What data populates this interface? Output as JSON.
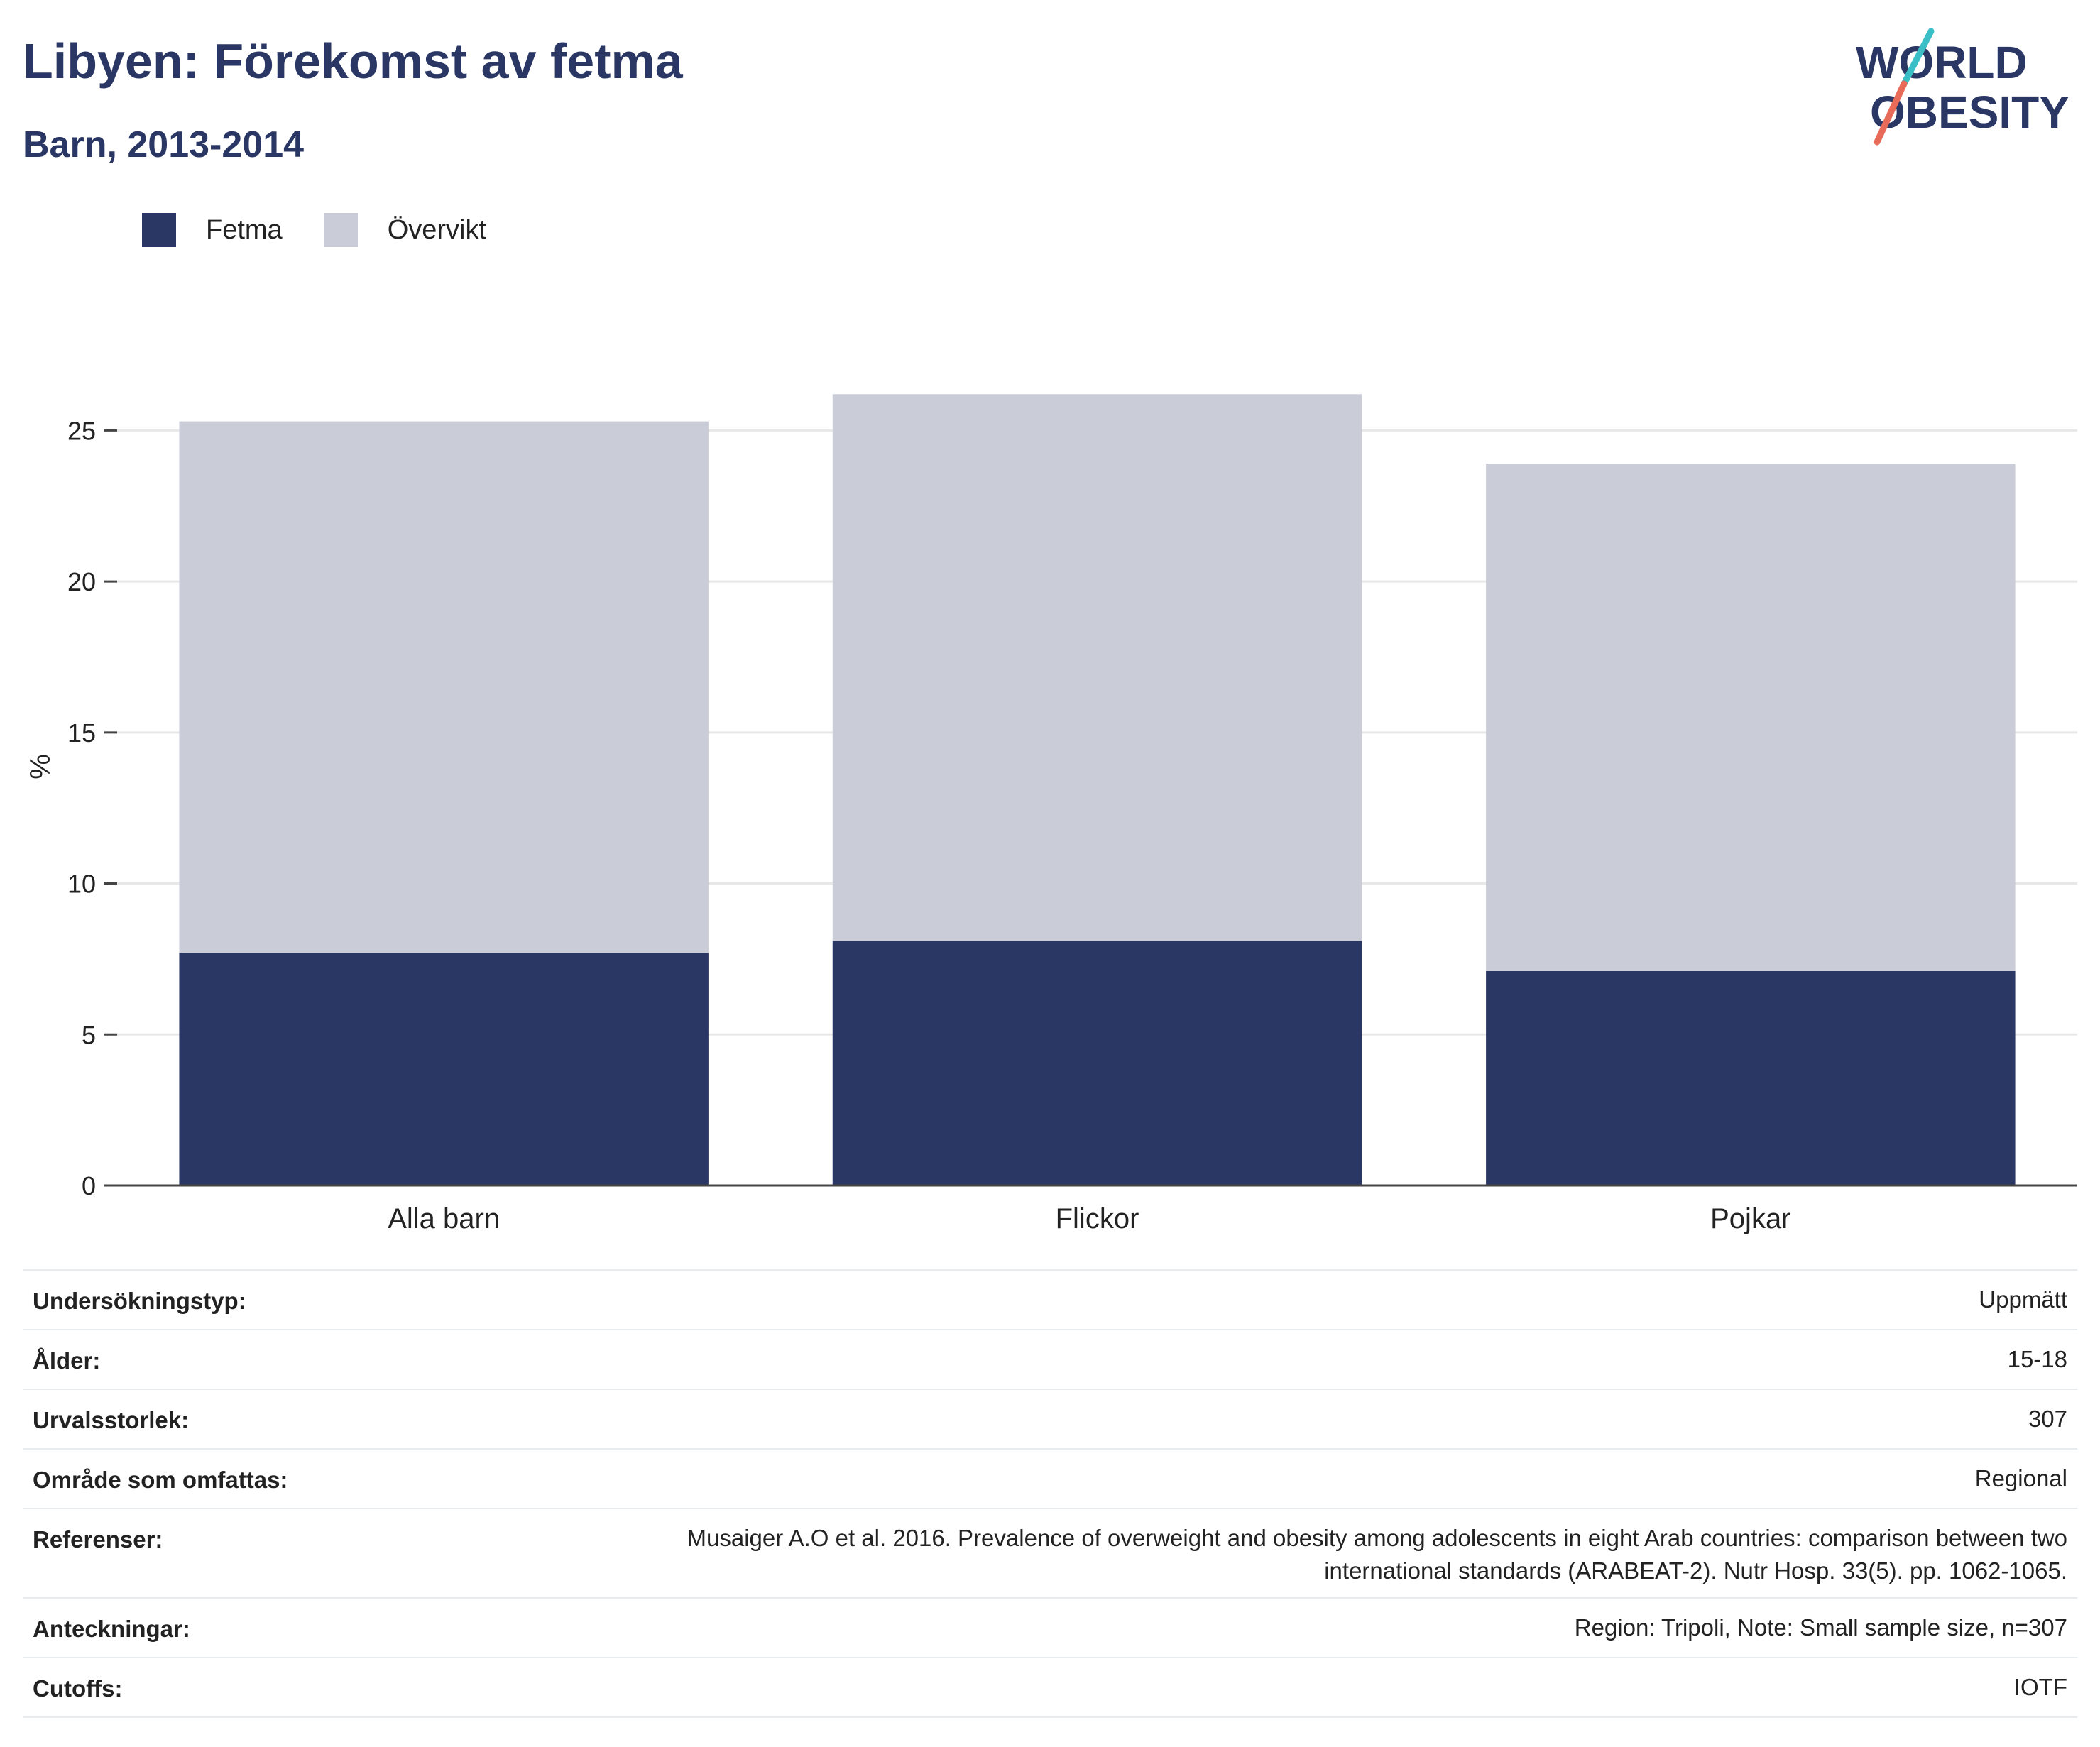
{
  "header": {
    "title": "Libyen: Förekomst av fetma",
    "subtitle": "Barn, 2013-2014"
  },
  "logo": {
    "line1": "WORLD",
    "line2": "OBESITY"
  },
  "colors": {
    "fetma": "#2a3764",
    "overvikt": "#cacdd8",
    "text": "#2a3764",
    "grid": "#e8e8e8",
    "axis": "#444444"
  },
  "chart_data": {
    "type": "bar",
    "stacked": true,
    "categories": [
      "Alla barn",
      "Flickor",
      "Pojkar"
    ],
    "series": [
      {
        "name": "Fetma",
        "values": [
          7.7,
          8.1,
          7.1
        ]
      },
      {
        "name": "Övervikt",
        "values": [
          17.6,
          18.1,
          16.8
        ]
      }
    ],
    "ylabel": "%",
    "ylim": [
      0,
      27.5
    ],
    "yticks": [
      0,
      5,
      10,
      15,
      20,
      25
    ],
    "grid": true,
    "legend_position": "top-left"
  },
  "info": {
    "rows": [
      {
        "key": "Undersökningstyp:",
        "value": "Uppmätt"
      },
      {
        "key": "Ålder:",
        "value": "15-18"
      },
      {
        "key": "Urvalsstorlek:",
        "value": "307"
      },
      {
        "key": "Område som omfattas:",
        "value": "Regional"
      },
      {
        "key": "Referenser:",
        "value": "Musaiger A.O et al. 2016. Prevalence of overweight and obesity among adolescents in eight Arab countries: comparison between two international standards (ARABEAT-2). Nutr Hosp. 33(5). pp. 1062-1065."
      },
      {
        "key": "Anteckningar:",
        "value": "Region: Tripoli, Note: Small sample size, n=307"
      },
      {
        "key": "Cutoffs:",
        "value": "IOTF"
      }
    ]
  }
}
